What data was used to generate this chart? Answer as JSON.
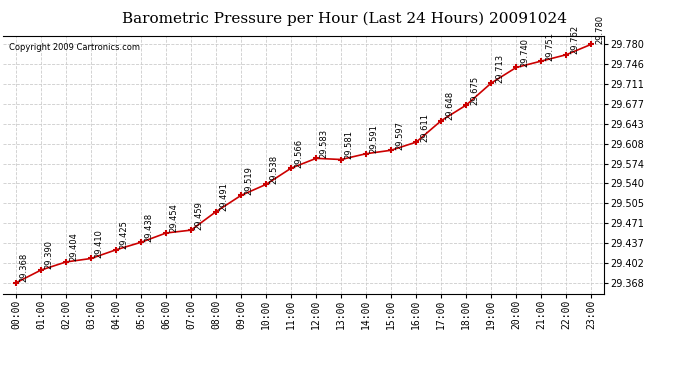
{
  "title": "Barometric Pressure per Hour (Last 24 Hours) 20091024",
  "copyright": "Copyright 2009 Cartronics.com",
  "hours": [
    "00:00",
    "01:00",
    "02:00",
    "03:00",
    "04:00",
    "05:00",
    "06:00",
    "07:00",
    "08:00",
    "09:00",
    "10:00",
    "11:00",
    "12:00",
    "13:00",
    "14:00",
    "15:00",
    "16:00",
    "17:00",
    "18:00",
    "19:00",
    "20:00",
    "21:00",
    "22:00",
    "23:00"
  ],
  "values": [
    29.368,
    29.39,
    29.404,
    29.41,
    29.425,
    29.438,
    29.454,
    29.459,
    29.491,
    29.519,
    29.538,
    29.566,
    29.583,
    29.581,
    29.591,
    29.597,
    29.611,
    29.648,
    29.675,
    29.713,
    29.74,
    29.751,
    29.762,
    29.78
  ],
  "line_color": "#cc0000",
  "marker": "+",
  "bg_color": "#ffffff",
  "grid_color": "#cccccc",
  "title_fontsize": 11,
  "copyright_fontsize": 6,
  "annotation_fontsize": 6,
  "tick_fontsize": 7,
  "ytick_values": [
    29.368,
    29.402,
    29.437,
    29.471,
    29.505,
    29.54,
    29.574,
    29.608,
    29.643,
    29.677,
    29.711,
    29.746,
    29.78
  ],
  "ylim_min": 29.348,
  "ylim_max": 29.795
}
